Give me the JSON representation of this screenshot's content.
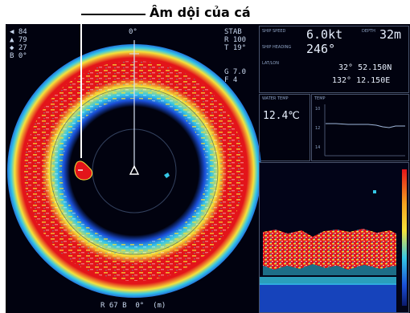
{
  "annotation": {
    "label": "Âm dội của cá"
  },
  "sonar": {
    "top_left": [
      "84",
      "79",
      "27",
      "0°"
    ],
    "top_left_prefix": [
      "",
      "",
      "",
      "B"
    ],
    "heading": "0°",
    "top_right_labels": [
      "STAB",
      "R",
      "T"
    ],
    "top_right_values": [
      "",
      "100",
      "19°"
    ],
    "gain": [
      "G",
      "F"
    ],
    "gain_values": [
      "7.0",
      "4"
    ],
    "bottom_readout": [
      "R",
      "67",
      "B",
      "0°",
      "(m)"
    ]
  },
  "info": {
    "ship_speed_label": "SHIP SPEED",
    "speed": "6.0kt",
    "depth_label": "DEPTH",
    "depth": "32m",
    "heading_label": "SHIP HEADING",
    "heading": "246°",
    "latlon_label": "LAT/LON",
    "lat": "32° 52.150N",
    "lon": "132° 12.150E",
    "water_temp_label": "WATER TEMP",
    "water_temp": "12.4℃",
    "temp_graph_label": "TEMP",
    "temp_axis": [
      "10",
      "12",
      "14"
    ]
  },
  "colors": {
    "echo_red": "#e3141a",
    "echo_yellow": "#f5e23a",
    "echo_cyan": "#35c7e6",
    "echo_blue": "#1a4fd8",
    "background": "#01020f"
  }
}
